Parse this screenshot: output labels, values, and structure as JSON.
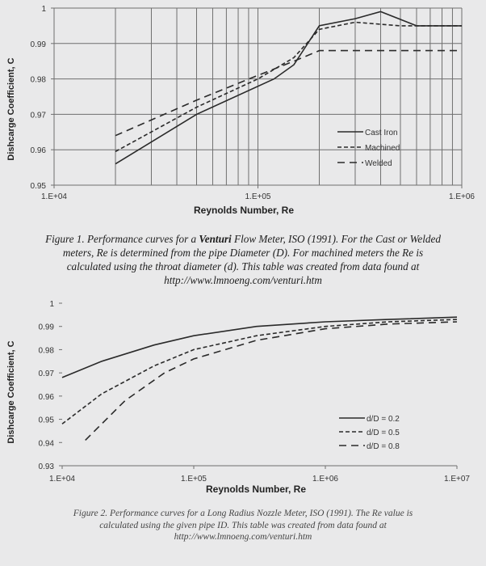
{
  "figures": [
    {
      "caption": {
        "prefix": "Figure 1. Performance curves for a ",
        "bold": "Venturi",
        "rest": " Flow Meter, ISO (1991).  For the Cast or Welded",
        "line2": "meters, Re is determined from the pipe Diameter (D).  For machined meters the Re is",
        "line3": "calculated using the throat diameter (d). This table was created from data found at",
        "line4": "http://www.lmnoeng.com/venturi.htm"
      }
    },
    {
      "caption": {
        "line1": "Figure 2. Performance curves for a Long Radius Nozzle Meter, ISO (1991).  The Re value is",
        "line2": "calculated using the given pipe ID.  This table was created from data found at",
        "line3": "http://www.lmnoeng.com/venturi.htm"
      }
    }
  ],
  "chart_data": [
    {
      "type": "line",
      "xscale": "log",
      "xlim": [
        10000,
        1000000
      ],
      "ylim": [
        0.95,
        1.0
      ],
      "xticks": [
        "1.E+04",
        "1.E+05",
        "1.E+06"
      ],
      "yticks": [
        "0.95",
        "0.96",
        "0.97",
        "0.98",
        "0.99",
        "1"
      ],
      "xlabel": "Reynolds Number, Re",
      "ylabel": "Dishcarge Coefficient, C",
      "grid": true,
      "legend_position": "lower-right",
      "series": [
        {
          "name": "Cast Iron",
          "style": "solid",
          "points": [
            [
              20000,
              0.956
            ],
            [
              50000,
              0.97
            ],
            [
              120000,
              0.98
            ],
            [
              150000,
              0.984
            ],
            [
              200000,
              0.995
            ],
            [
              300000,
              0.997
            ],
            [
              400000,
              0.999
            ],
            [
              600000,
              0.995
            ],
            [
              1000000,
              0.995
            ]
          ]
        },
        {
          "name": "Machined",
          "style": "dash-short",
          "points": [
            [
              20000,
              0.9595
            ],
            [
              50000,
              0.972
            ],
            [
              100000,
              0.98
            ],
            [
              150000,
              0.986
            ],
            [
              200000,
              0.994
            ],
            [
              300000,
              0.996
            ],
            [
              500000,
              0.995
            ],
            [
              1000000,
              0.995
            ]
          ]
        },
        {
          "name": "Welded",
          "style": "dash-long",
          "points": [
            [
              20000,
              0.964
            ],
            [
              50000,
              0.974
            ],
            [
              100000,
              0.981
            ],
            [
              150000,
              0.985
            ],
            [
              200000,
              0.988
            ],
            [
              1000000,
              0.988
            ]
          ]
        }
      ]
    },
    {
      "type": "line",
      "xscale": "log",
      "xlim": [
        10000,
        10000000
      ],
      "ylim": [
        0.93,
        1.0
      ],
      "xticks": [
        "1.E+04",
        "1.E+05",
        "1.E+06",
        "1.E+07"
      ],
      "yticks": [
        "0.93",
        "0.94",
        "0.95",
        "0.96",
        "0.97",
        "0.98",
        "0.99",
        "1"
      ],
      "xlabel": "Reynolds Number, Re",
      "ylabel": "Dishcarge Coefficient, C",
      "grid": false,
      "legend_position": "lower-right",
      "series": [
        {
          "name": "d/D = 0.2",
          "style": "solid",
          "points": [
            [
              10000,
              0.968
            ],
            [
              20000,
              0.975
            ],
            [
              50000,
              0.982
            ],
            [
              100000,
              0.986
            ],
            [
              300000,
              0.99
            ],
            [
              1000000,
              0.992
            ],
            [
              3000000,
              0.993
            ],
            [
              10000000,
              0.994
            ]
          ]
        },
        {
          "name": "d/D = 0.5",
          "style": "dash-short",
          "points": [
            [
              10000,
              0.948
            ],
            [
              20000,
              0.961
            ],
            [
              50000,
              0.973
            ],
            [
              100000,
              0.98
            ],
            [
              300000,
              0.986
            ],
            [
              1000000,
              0.99
            ],
            [
              3000000,
              0.992
            ],
            [
              10000000,
              0.993
            ]
          ]
        },
        {
          "name": "d/D = 0.8",
          "style": "dash-long",
          "points": [
            [
              15000,
              0.941
            ],
            [
              30000,
              0.958
            ],
            [
              60000,
              0.97
            ],
            [
              100000,
              0.976
            ],
            [
              300000,
              0.984
            ],
            [
              1000000,
              0.989
            ],
            [
              3000000,
              0.991
            ],
            [
              10000000,
              0.992
            ]
          ]
        }
      ]
    }
  ],
  "colors": {
    "line": "#2a2a2a",
    "grid": "#6f6f6f",
    "background": "#e9e9ea"
  }
}
